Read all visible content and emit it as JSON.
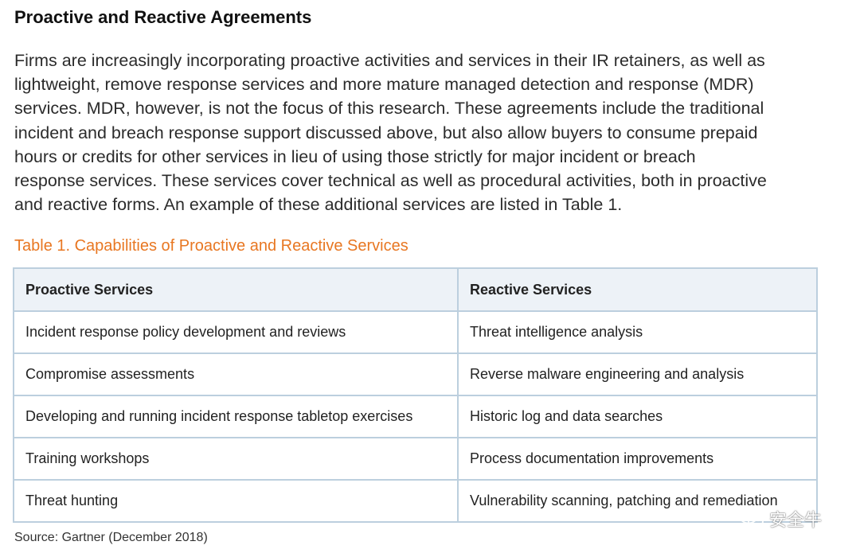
{
  "heading": "Proactive and Reactive Agreements",
  "paragraph_lines": [
    "Firms are increasingly incorporating proactive activities and services in their IR retainers, as well as",
    "lightweight, remove response services and more mature managed detection and response (MDR)",
    "services. MDR, however, is not the focus of this research. These agreements include the traditional",
    "incident and breach response support discussed above, but also allow buyers to consume prepaid",
    "hours or credits for other services in lieu of using those strictly for major incident or breach",
    "response services. These services cover technical as well as procedural activities, both in proactive",
    "and reactive forms. An example of these additional services are listed in Table 1."
  ],
  "table": {
    "caption": "Table 1. Capabilities of Proactive and Reactive Services",
    "headers": [
      "Proactive Services",
      "Reactive Services"
    ],
    "rows": [
      [
        "Incident response policy development and reviews",
        "Threat intelligence analysis"
      ],
      [
        "Compromise assessments",
        "Reverse malware engineering and analysis"
      ],
      [
        "Developing and running incident response tabletop exercises",
        "Historic log and data searches"
      ],
      [
        "Training workshops",
        "Process documentation improvements"
      ],
      [
        "Threat hunting",
        "Vulnerability scanning, patching and remediation"
      ]
    ]
  },
  "source": "Source: Gartner (December 2018)",
  "watermark": {
    "icon": "wechat-icon",
    "text": "安全牛"
  },
  "colors": {
    "caption": "#e87722",
    "table_border": "#bccfde",
    "header_bg": "#edf2f7"
  }
}
